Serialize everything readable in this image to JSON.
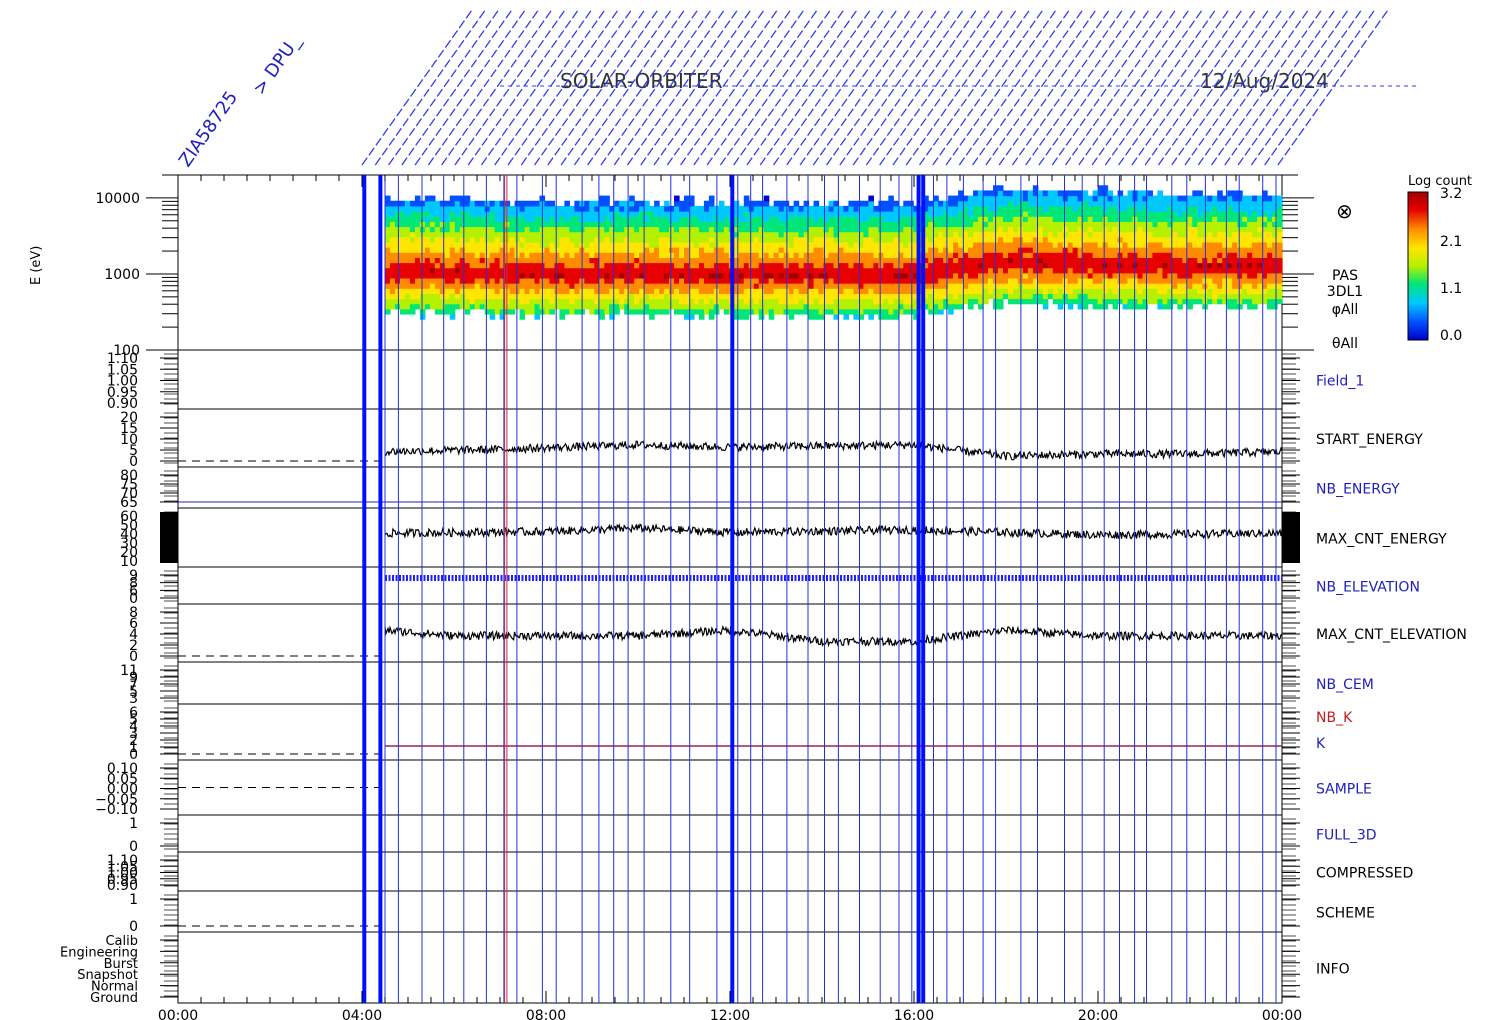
{
  "header": {
    "mission": "SOLAR-ORBITER",
    "date": "12/Aug/2024",
    "left_label_1": "ZIA58725",
    "left_label_2": "> DPU_"
  },
  "colorbar": {
    "title": "Log count",
    "ticks": [
      "3.2",
      "2.1",
      "1.1",
      "0.0"
    ],
    "range": [
      0.0,
      3.2
    ],
    "colors": [
      "#0000c8",
      "#0050ff",
      "#00c8ff",
      "#00e678",
      "#b4f000",
      "#ffe600",
      "#ff8c00",
      "#e60000",
      "#a00000"
    ]
  },
  "time_axis": {
    "ticks": [
      "00:00",
      "04:00",
      "08:00",
      "12:00",
      "16:00",
      "20:00",
      "00:00"
    ]
  },
  "spectrogram": {
    "ylabel": "E (eV)",
    "yticks": [
      "10000",
      "1000",
      "100"
    ],
    "right_labels": [
      "PAS",
      "3DL1",
      "φAll",
      "θAll"
    ],
    "symbol": "⊗"
  },
  "panels": [
    {
      "label": "Field_1",
      "color": "#2020c0",
      "ticks": [
        "1.10",
        "1.05",
        "1.00",
        "0.95",
        "0.90"
      ]
    },
    {
      "label": "START_ENERGY",
      "color": "#000000",
      "ticks": [
        "20",
        "15",
        "10",
        "5",
        "0"
      ]
    },
    {
      "label": "NB_ENERGY",
      "color": "#2020c0",
      "ticks": [
        "80",
        "75",
        "70",
        "65"
      ]
    },
    {
      "label": "MAX_CNT_ENERGY",
      "color": "#000000",
      "ticks": [
        "60",
        "50",
        "40",
        "30",
        "20",
        "10"
      ]
    },
    {
      "label": "NB_ELEVATION",
      "color": "#2020c0",
      "ticks": [
        "9",
        "8",
        "6",
        "0"
      ]
    },
    {
      "label": "MAX_CNT_ELEVATION",
      "color": "#000000",
      "ticks": [
        "8",
        "6",
        "4",
        "2",
        "0"
      ]
    },
    {
      "label": "NB_CEM",
      "color": "#2020c0",
      "ticks": [
        "11",
        "9",
        "7",
        "5",
        "3"
      ]
    },
    {
      "label": "NB_K",
      "color": "#c02020",
      "ticks": [
        "6",
        "5",
        "4",
        "3",
        "2",
        "1",
        "0"
      ]
    },
    {
      "label": "SAMPLE",
      "color": "#2020c0",
      "ticks": [
        "0.10",
        "0.05",
        "0.00",
        "−0.05",
        "−0.10"
      ]
    },
    {
      "label": "FULL_3D",
      "color": "#2020c0",
      "ticks": [
        "1",
        "0"
      ]
    },
    {
      "label": "COMPRESSED",
      "color": "#000000",
      "ticks": [
        "1.10",
        "1.05",
        "1.00",
        "0.95",
        "0.90"
      ]
    },
    {
      "label": "SCHEME",
      "color": "#000000",
      "ticks": [
        "1",
        "0"
      ]
    },
    {
      "label": "INFO",
      "color": "#000000",
      "ticks": [
        "Calib",
        "Engineering",
        "Burst",
        "Snapshot",
        "Normal",
        "Ground"
      ]
    }
  ],
  "k_label": "K",
  "chart_data": {
    "type": "heatmap",
    "title": "SOLAR-ORBITER 12/Aug/2024",
    "xlabel": "",
    "ylabel": "E (eV)",
    "x_range_hours": [
      0,
      24
    ],
    "y_range_eV": [
      100,
      20000
    ],
    "log_y": true,
    "data_start_hour": 4.5,
    "series": [
      {
        "name": "PAS 3DL1 peak energy (eV)",
        "x": [
          4.5,
          6,
          8,
          10,
          12,
          14,
          16,
          18,
          19.5,
          22,
          24
        ],
        "values": [
          1100,
          1100,
          1000,
          1050,
          1000,
          1000,
          1000,
          1500,
          1400,
          1300,
          1300
        ]
      },
      {
        "name": "START_ENERGY",
        "x": [
          4.5,
          7,
          10,
          12,
          16,
          18,
          20,
          22,
          24
        ],
        "values": [
          5,
          6,
          8,
          7,
          8,
          3,
          4,
          4,
          5
        ]
      },
      {
        "name": "MAX_CNT_ENERGY",
        "x": [
          4.5,
          8,
          10,
          12,
          16,
          20,
          24
        ],
        "values": [
          40,
          42,
          46,
          41,
          44,
          38,
          40
        ]
      },
      {
        "name": "MAX_CNT_ELEVATION",
        "x": [
          4.5,
          6,
          8,
          10,
          12,
          14,
          16,
          18,
          20,
          22,
          24
        ],
        "values": [
          5,
          4,
          4,
          4,
          5,
          3,
          3,
          5,
          4,
          4,
          4
        ]
      }
    ]
  }
}
